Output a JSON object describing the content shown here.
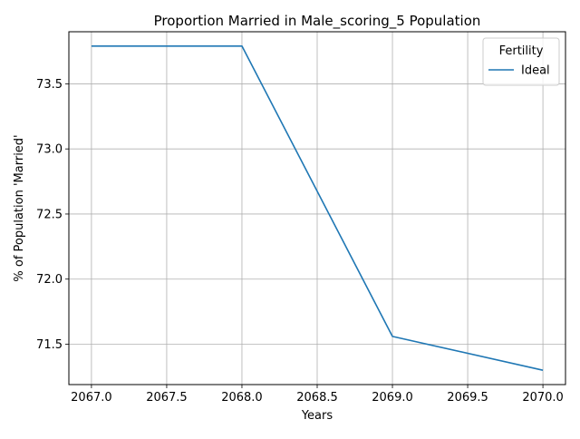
{
  "chart_data": {
    "type": "line",
    "title": "Proportion Married in Male_scoring_5 Population",
    "xlabel": "Years",
    "ylabel": "% of Population 'Married'",
    "x": [
      2067,
      2068,
      2069,
      2070
    ],
    "series": [
      {
        "name": "Ideal",
        "values": [
          73.79,
          73.79,
          71.56,
          71.3
        ],
        "color": "#1f77b4"
      }
    ],
    "xlim": [
      2066.85,
      2070.15
    ],
    "ylim": [
      71.19,
      73.9
    ],
    "xticks": [
      "2067.0",
      "2067.5",
      "2068.0",
      "2068.5",
      "2069.0",
      "2069.5",
      "2070.0"
    ],
    "yticks": [
      "71.5",
      "72.0",
      "72.5",
      "73.0",
      "73.5"
    ],
    "grid": true,
    "legend": {
      "title": "Fertility",
      "placement": "top-right"
    }
  }
}
